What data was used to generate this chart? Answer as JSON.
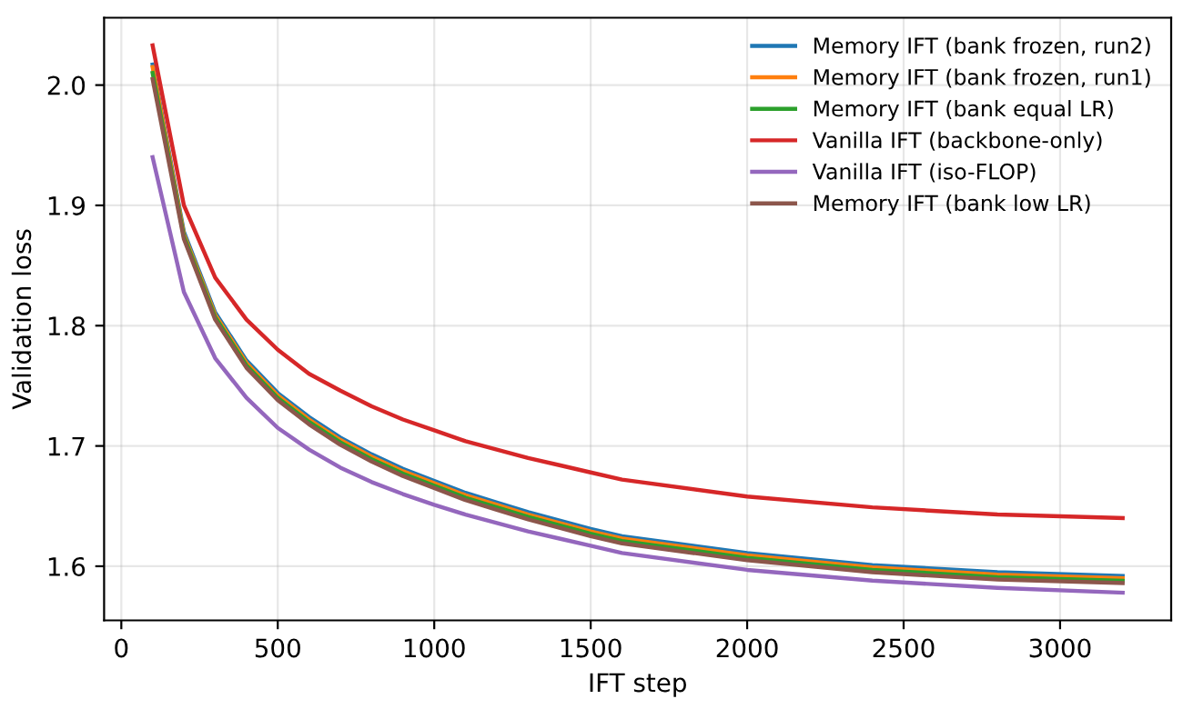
{
  "chart_data": {
    "type": "line",
    "xlabel": "IFT step",
    "ylabel": "Validation loss",
    "x": [
      100,
      200,
      300,
      400,
      500,
      600,
      700,
      800,
      900,
      1000,
      1100,
      1200,
      1300,
      1400,
      1500,
      1600,
      2000,
      2400,
      2800,
      3200
    ],
    "xlim": [
      -55,
      3355
    ],
    "ylim": [
      1.555,
      2.056
    ],
    "xticks": [
      0,
      500,
      1000,
      1500,
      2000,
      2500,
      3000
    ],
    "yticks": [
      {
        "value": 1.6,
        "label": "1.6"
      },
      {
        "value": 1.7,
        "label": "1.7"
      },
      {
        "value": 1.8,
        "label": "1.8"
      },
      {
        "value": 1.9,
        "label": "1.9"
      },
      {
        "value": 2.0,
        "label": "2.0"
      }
    ],
    "grid": true,
    "legend": "top right",
    "marker": "none",
    "line_style": "solid",
    "series": [
      {
        "name": "Memory IFT (bank frozen, run2)",
        "color": "#1f77b4",
        "values": [
          2.017,
          1.878,
          1.811,
          1.771,
          1.744,
          1.724,
          1.707,
          1.693,
          1.681,
          1.671,
          1.661,
          1.653,
          1.645,
          1.638,
          1.631,
          1.625,
          1.611,
          1.601,
          1.595,
          1.592
        ]
      },
      {
        "name": "Memory IFT (bank frozen, run1)",
        "color": "#ff7f0e",
        "values": [
          2.015,
          1.876,
          1.809,
          1.769,
          1.742,
          1.722,
          1.705,
          1.691,
          1.679,
          1.669,
          1.659,
          1.651,
          1.643,
          1.636,
          1.629,
          1.623,
          1.609,
          1.599,
          1.593,
          1.59
        ]
      },
      {
        "name": "Memory IFT (bank equal LR)",
        "color": "#2ca02c",
        "values": [
          2.01,
          1.874,
          1.807,
          1.767,
          1.74,
          1.72,
          1.703,
          1.689,
          1.677,
          1.667,
          1.657,
          1.649,
          1.641,
          1.634,
          1.627,
          1.621,
          1.607,
          1.597,
          1.591,
          1.588
        ]
      },
      {
        "name": "Vanilla IFT (backbone-only)",
        "color": "#d62728",
        "values": [
          2.033,
          1.9,
          1.84,
          1.805,
          1.78,
          1.76,
          1.746,
          1.733,
          1.722,
          1.713,
          1.704,
          1.697,
          1.69,
          1.684,
          1.678,
          1.672,
          1.658,
          1.649,
          1.643,
          1.64
        ]
      },
      {
        "name": "Vanilla IFT (iso-FLOP)",
        "color": "#9467bd",
        "values": [
          1.94,
          1.828,
          1.773,
          1.74,
          1.715,
          1.697,
          1.682,
          1.67,
          1.66,
          1.651,
          1.643,
          1.636,
          1.629,
          1.623,
          1.617,
          1.611,
          1.597,
          1.588,
          1.582,
          1.578
        ]
      },
      {
        "name": "Memory IFT (bank low LR)",
        "color": "#8c564b",
        "values": [
          2.005,
          1.872,
          1.805,
          1.765,
          1.738,
          1.718,
          1.701,
          1.687,
          1.675,
          1.665,
          1.655,
          1.647,
          1.639,
          1.632,
          1.625,
          1.619,
          1.605,
          1.595,
          1.589,
          1.586
        ]
      }
    ]
  }
}
